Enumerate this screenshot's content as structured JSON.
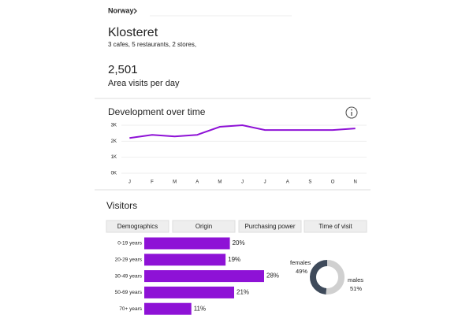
{
  "header": {
    "breadcrumb": "Norway",
    "title": "Klosteret",
    "subtitle": "3 cafes,  5 restaurants, 2 stores,"
  },
  "stats": {
    "value": "2,501",
    "label": "Area visits per day"
  },
  "development": {
    "title": "Development over time",
    "chart_data": {
      "type": "line",
      "color": "#8e12d6",
      "grid": true,
      "categories": [
        "J",
        "F",
        "M",
        "A",
        "M",
        "J",
        "J",
        "A",
        "S",
        "O",
        "N"
      ],
      "values": [
        2200,
        2400,
        2300,
        2400,
        2900,
        3000,
        2700,
        2700,
        2700,
        2700,
        2800
      ],
      "ylim": [
        0,
        3000
      ],
      "yticks": [
        {
          "value": 0,
          "label": "0K"
        },
        {
          "value": 1000,
          "label": "1K"
        },
        {
          "value": 2000,
          "label": "2K"
        },
        {
          "value": 3000,
          "label": "3K"
        }
      ]
    }
  },
  "visitors": {
    "title": "Visitors",
    "tabs": [
      "Demographics",
      "Origin",
      "Purchasing power",
      "Time of visit"
    ],
    "age_chart": {
      "type": "bar",
      "color": "#8e12d6",
      "categories": [
        "0-19 years",
        "20-29 years",
        "30-49 years",
        "50-69 years",
        "70+ years"
      ],
      "values": [
        20,
        19,
        28,
        21,
        11
      ],
      "value_labels": [
        "20%",
        "19%",
        "28%",
        "21%",
        "11%"
      ]
    },
    "gender_chart": {
      "type": "donut",
      "categories": [
        "females",
        "males"
      ],
      "values": [
        49,
        51
      ],
      "value_labels": [
        "49%",
        "51%"
      ],
      "colors": [
        "#3e4a5a",
        "#d0d0d0"
      ]
    }
  }
}
